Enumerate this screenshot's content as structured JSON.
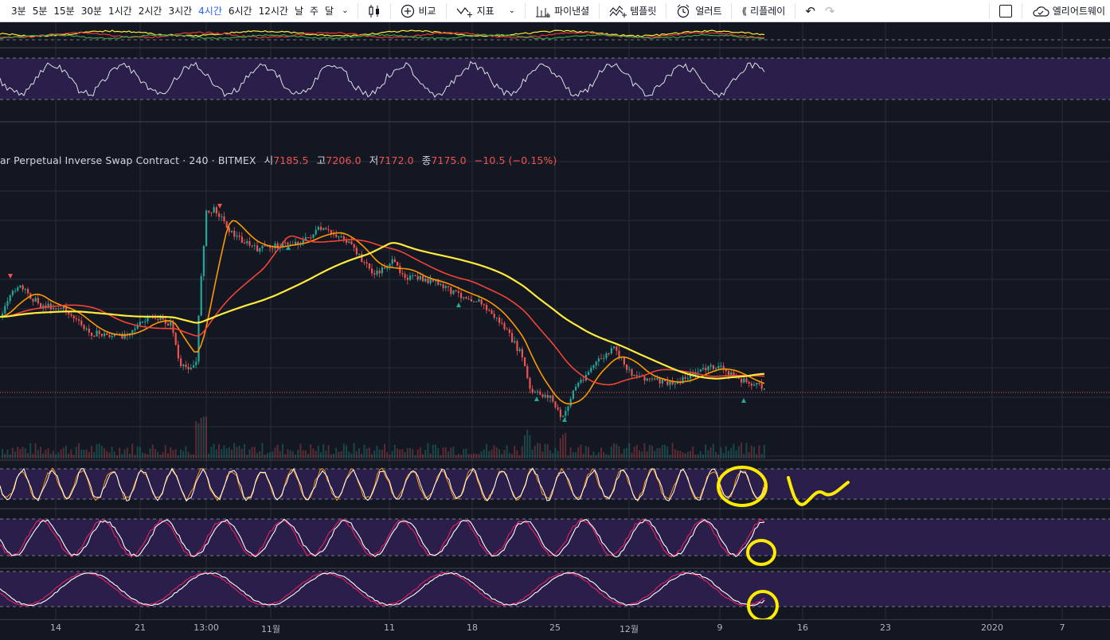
{
  "toolbar": {
    "timeframes": [
      "3분",
      "5분",
      "15분",
      "30분",
      "1시간",
      "2시간",
      "3시간",
      "4시간",
      "6시간",
      "12시간",
      "날",
      "주",
      "달"
    ],
    "active_timeframe": "4시간",
    "compare_label": "비교",
    "indicators_label": "지표",
    "financials_label": "파이낸셜",
    "templates_label": "템플릿",
    "alert_label": "얼러트",
    "replay_label": "리플레이",
    "elliott_label": "엘리어트웨이"
  },
  "symbol": {
    "name": "ar Perpetual Inverse Swap Contract",
    "interval": "240",
    "exchange": "BITMEX",
    "open_label": "시",
    "open_value": "7185.5",
    "high_label": "고",
    "high_value": "7206.0",
    "low_label": "저",
    "low_value": "7172.0",
    "close_label": "종",
    "close_value": "7175.0",
    "change": "−10.5 (−0.15%)"
  },
  "time_axis": {
    "labels": [
      "14",
      "21",
      "13:00",
      "11월",
      "11",
      "18",
      "25",
      "12월",
      "9",
      "16",
      "23",
      "2020",
      "7"
    ]
  },
  "colors": {
    "background": "#131722",
    "up": "#26a69a",
    "down": "#ef5350",
    "ma_fast": "#ff9800",
    "ma_mid": "#f44336",
    "ma_slow": "#ffeb3b",
    "osc_band": "#2a1f4a",
    "annotation": "#ffeb00"
  },
  "chart_data": {
    "type": "candlestick",
    "title": "ar Perpetual Inverse Swap Contract · 240 · BITMEX",
    "xlabel": "",
    "ylabel": "",
    "x_ticks": [
      "14",
      "21",
      "13:00",
      "11월",
      "11",
      "18",
      "25",
      "12월",
      "9",
      "16",
      "23",
      "2020",
      "7"
    ],
    "last_bar": {
      "open": 7185.5,
      "high": 7206.0,
      "low": 7172.0,
      "close": 7175.0,
      "change": -10.5,
      "change_pct": -0.15
    },
    "series": [
      {
        "name": "MA fast",
        "color": "#ff9800"
      },
      {
        "name": "MA mid",
        "color": "#f44336"
      },
      {
        "name": "MA slow",
        "color": "#ffeb3b"
      }
    ],
    "indicator_panes": 5
  }
}
